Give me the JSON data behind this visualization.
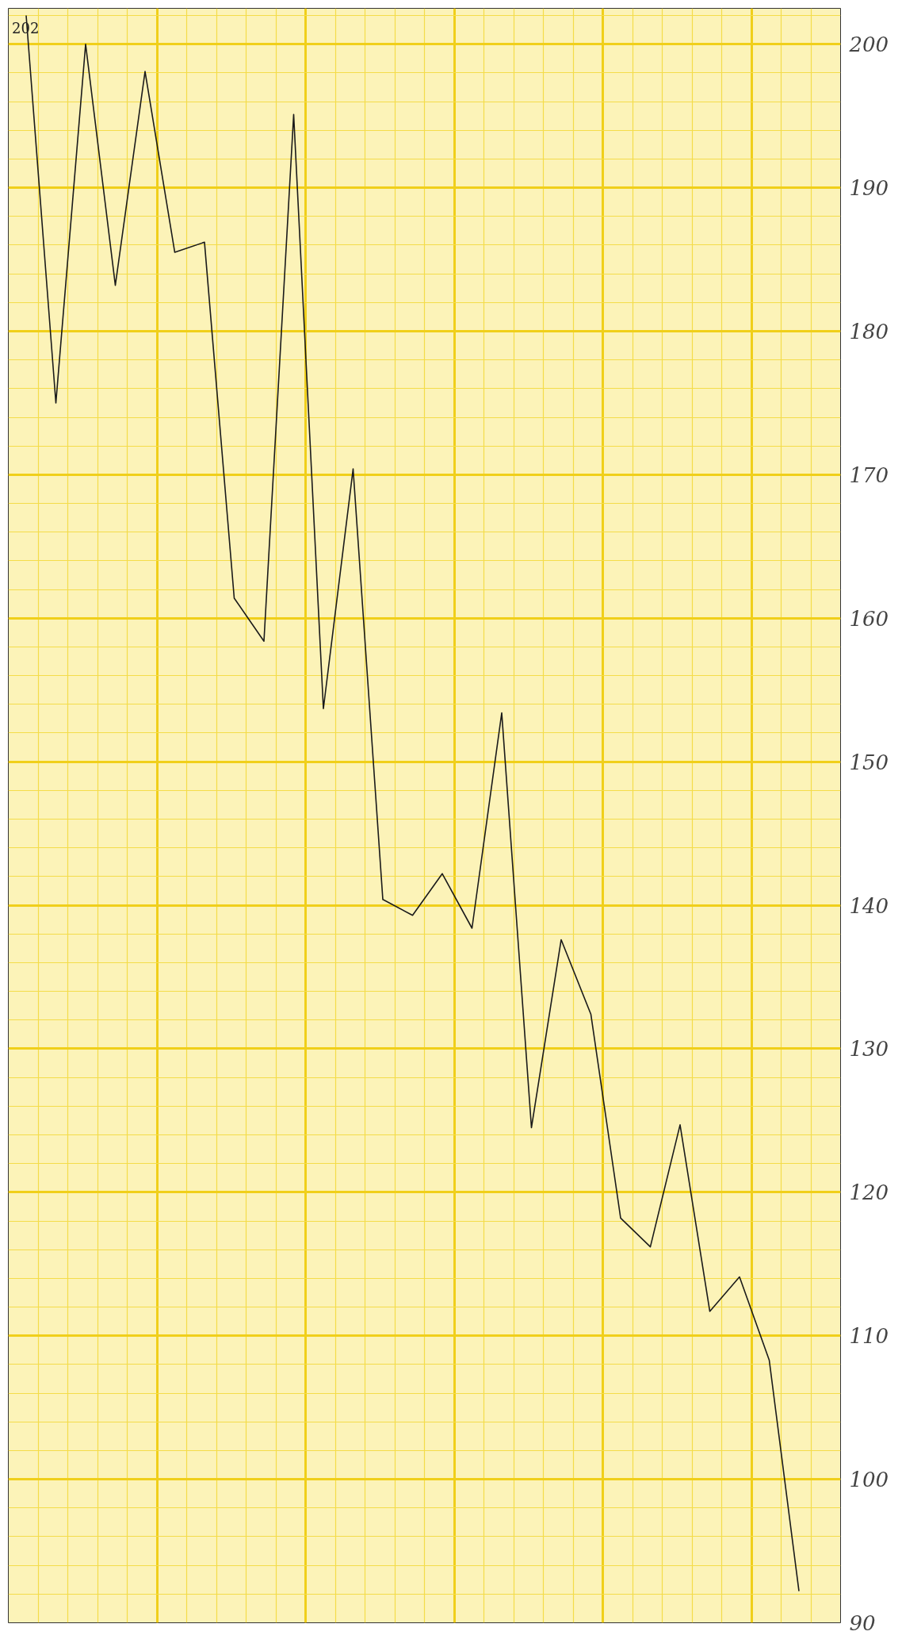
{
  "chart_data": {
    "type": "line",
    "categories": [
      null,
      null,
      null,
      null,
      null,
      null,
      null,
      null,
      null,
      null,
      null,
      null,
      null,
      null,
      null,
      null,
      null,
      null,
      null,
      null,
      null,
      null,
      null,
      null,
      null,
      null,
      null
    ],
    "series": [
      {
        "color": "#1a1a1a",
        "values": [
          202,
          175,
          200,
          183.2,
          198.1,
          185.5,
          186.2,
          161.4,
          158.4,
          195.1,
          153.7,
          170.4,
          140.4,
          139.3,
          142.2,
          138.4,
          153.4,
          124.5,
          137.6,
          132.4,
          118.2,
          116.2,
          124.7,
          111.7,
          114.1,
          108.3,
          92.2
        ]
      }
    ],
    "ylim": [
      90,
      202.5
    ],
    "yticks": [
      90,
      100,
      110,
      120,
      130,
      140,
      150,
      160,
      170,
      180,
      190,
      200
    ],
    "annotations": [
      {
        "text": "202",
        "y": 202
      }
    ],
    "grid": true,
    "tick_labels": "y",
    "marker": "none",
    "line_style": "solid"
  }
}
